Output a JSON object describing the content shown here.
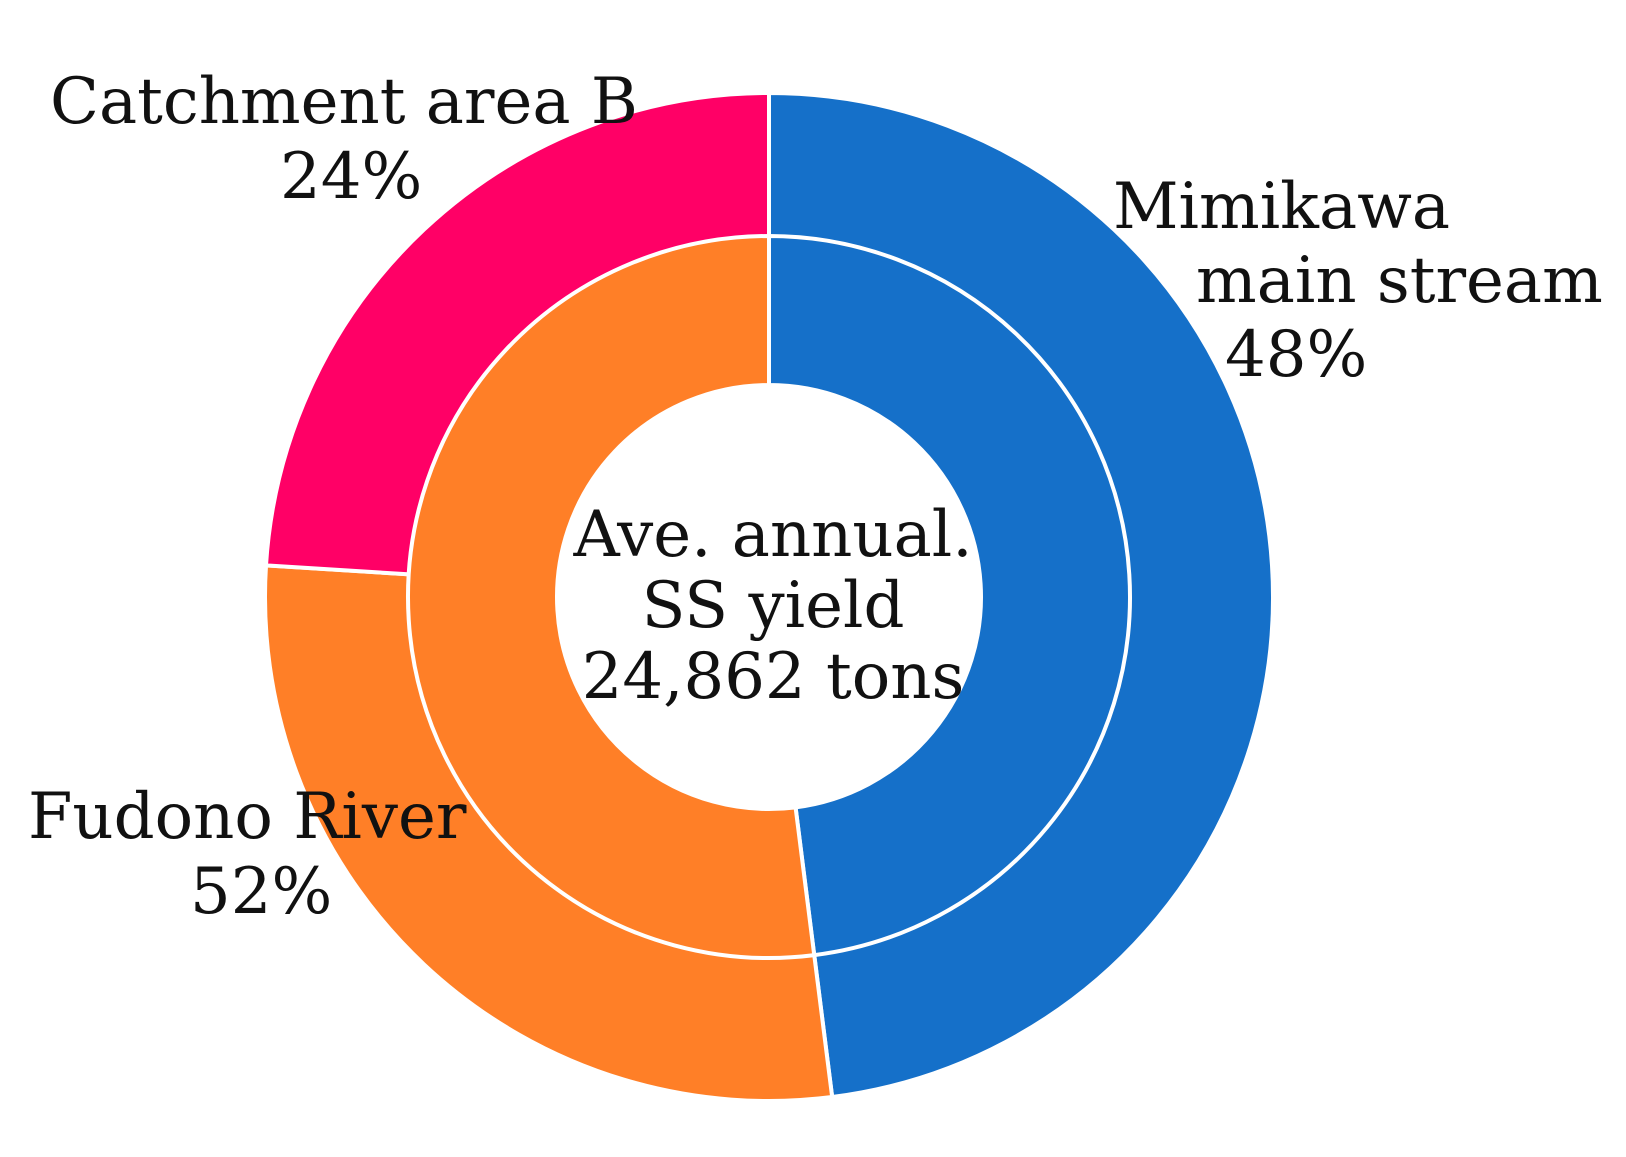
{
  "chart_data": {
    "type": "pie",
    "donut": true,
    "title": "",
    "center_label": [
      "Ave. annual.",
      "SS yield",
      "24,862 tons"
    ],
    "outer_ring": [
      {
        "label": [
          "Mimikawa",
          "main stream"
        ],
        "value": 48,
        "value_label": "48%",
        "color": "#1570C9"
      },
      {
        "label": [
          "Fudono River"
        ],
        "value": 28,
        "value_label": "",
        "color": "#FF7F27"
      },
      {
        "label": [
          "Catchment area B"
        ],
        "value": 24,
        "value_label": "24%",
        "color": "#FF0066"
      }
    ],
    "inner_ring": [
      {
        "label": [
          "Mimikawa",
          "main stream"
        ],
        "value": 48,
        "color": "#1570C9"
      },
      {
        "label": [
          "Fudono River"
        ],
        "value": 52,
        "value_label": "52%",
        "color": "#FF7F27"
      }
    ],
    "legend": "none",
    "grid": false
  }
}
